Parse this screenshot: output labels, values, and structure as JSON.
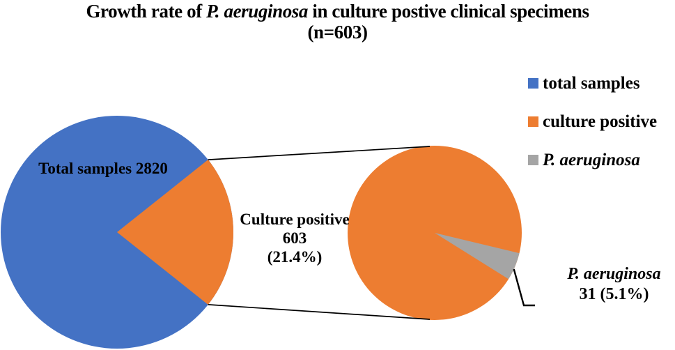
{
  "title": {
    "line1_prefix": "Growth rate of ",
    "line1_italic": "P. aeruginosa",
    "line1_suffix": " in culture postive clinical specimens",
    "line2": "(n=603)"
  },
  "legend": {
    "items": [
      {
        "label": "total samples",
        "color": "#4472C4",
        "italic": false
      },
      {
        "label": "culture positive",
        "color": "#ED7D31",
        "italic": false
      },
      {
        "label": "P. aeruginosa",
        "color": "#A5A5A5",
        "italic": true
      }
    ]
  },
  "labels": {
    "primary_pie": "Total samples 2820",
    "secondary_pie": {
      "line1": "Culture positive",
      "line2": "603",
      "line3": "(21.4%)"
    },
    "pa_callout": {
      "line1": "P. aeruginosa",
      "line2": "31 (5.1%)"
    }
  },
  "chart_data": {
    "type": "pie",
    "subtype": "pie-of-pie",
    "title": "Growth rate of P. aeruginosa in culture postive clinical specimens (n=603)",
    "n_label": "n=603",
    "legend_position": "right",
    "primary_pie": {
      "label": "Total samples 2820",
      "total": 2820,
      "slices": [
        {
          "name": "total samples",
          "value": 2217,
          "color": "#4472C4"
        },
        {
          "name": "culture positive",
          "value": 603,
          "percent": 21.4,
          "color": "#ED7D31"
        }
      ]
    },
    "secondary_pie": {
      "label": "Culture positive 603 (21.4%)",
      "total": 603,
      "slices": [
        {
          "name": "culture positive",
          "value": 572,
          "color": "#ED7D31"
        },
        {
          "name": "P. aeruginosa",
          "value": 31,
          "percent": 5.1,
          "color": "#A5A5A5"
        }
      ]
    },
    "connector_color": "#000000"
  }
}
